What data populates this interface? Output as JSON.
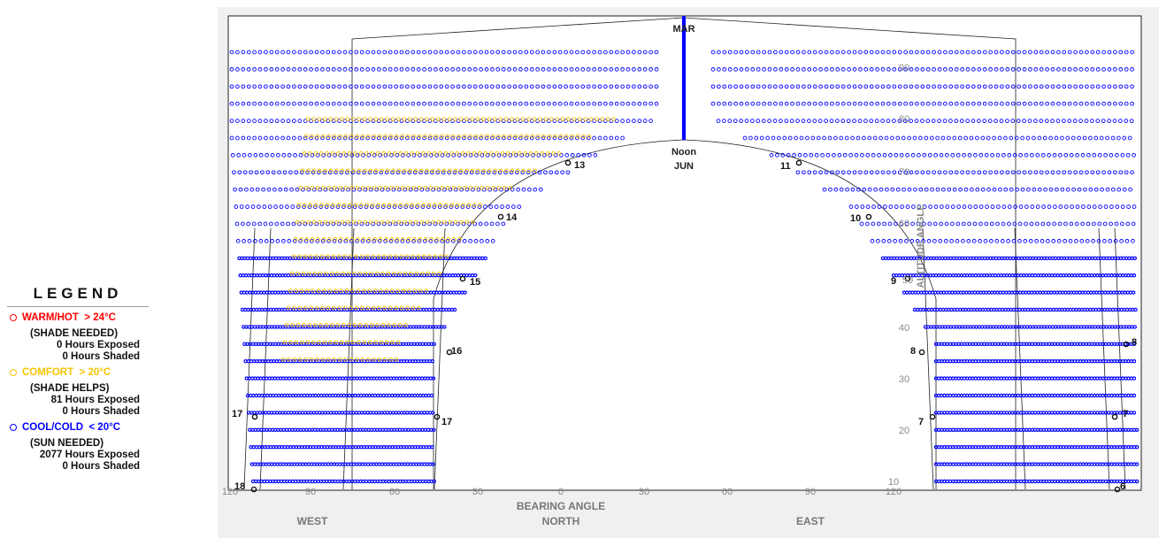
{
  "legend": {
    "title": "LEGEND",
    "warm": {
      "label": "WARM/HOT",
      "threshold": "> 24°C",
      "advice": "(SHADE NEEDED)",
      "exposed": "0 Hours Exposed",
      "shaded": "0 Hours Shaded",
      "color": "#ff0000"
    },
    "comfort": {
      "label": "COMFORT",
      "threshold": "> 20°C",
      "advice": "(SHADE HELPS)",
      "exposed": "81 Hours Exposed",
      "shaded": "0 Hours Shaded",
      "color": "#f5c400"
    },
    "cool": {
      "label": "COOL/COLD",
      "threshold": "< 20°C",
      "advice": "(SUN NEEDED)",
      "exposed": "2077 Hours Exposed",
      "shaded": "0 Hours Shaded",
      "color": "#0000ff"
    }
  },
  "chart_data": {
    "type": "scatter",
    "projection": "stereographic sun-path (bearing vs altitude)",
    "x_axis": {
      "label": "BEARING ANGLE",
      "range": [
        120,
        -120
      ],
      "tick_values": [
        120,
        90,
        60,
        30,
        0,
        -30,
        -60,
        -90,
        -120
      ],
      "tick_labels": [
        "120",
        "90",
        "60",
        "30",
        "0",
        "30",
        "60",
        "90",
        "120"
      ],
      "direction_labels": [
        {
          "text": "WEST",
          "at": 90
        },
        {
          "text": "NORTH",
          "at": 0
        },
        {
          "text": "EAST",
          "at": -90
        }
      ]
    },
    "y_axis": {
      "label": "ALTITUDE ANGLE",
      "range": [
        0,
        90
      ],
      "tick_labels": [
        "10",
        "20",
        "30",
        "40",
        "50",
        "60",
        "70",
        "80",
        "90"
      ]
    },
    "labels": {
      "noon": "Noon",
      "mar": "MAR",
      "jun": "JUN"
    },
    "hour_labels": [
      "18",
      "17",
      "16",
      "15",
      "14",
      "13",
      "11",
      "10",
      "9",
      "8",
      "7",
      "6"
    ],
    "series": [
      {
        "name": "COMFORT > 20°C",
        "color": "#f5c400",
        "hours_exposed": 81,
        "hours_shaded": 0
      },
      {
        "name": "COOL/COLD < 20°C",
        "color": "#0000ff",
        "hours_exposed": 2077,
        "hours_shaded": 0
      },
      {
        "name": "WARM/HOT > 24°C",
        "color": "#ff0000",
        "hours_exposed": 0,
        "hours_shaded": 0
      }
    ],
    "grid": true
  }
}
